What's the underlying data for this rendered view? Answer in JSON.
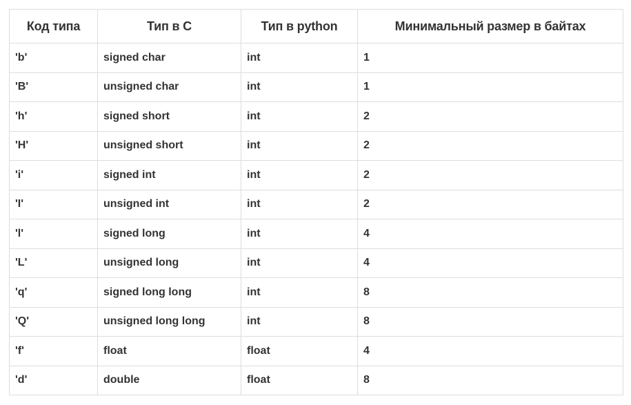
{
  "table": {
    "headers": [
      "Код типа",
      "Тип в С",
      "Тип в python",
      "Минимальный размер в байтах"
    ],
    "rows": [
      [
        "'b'",
        "signed char",
        "int",
        "1"
      ],
      [
        "'B'",
        "unsigned char",
        "int",
        "1"
      ],
      [
        "'h'",
        "signed short",
        "int",
        "2"
      ],
      [
        "'H'",
        "unsigned short",
        "int",
        "2"
      ],
      [
        "'i'",
        "signed int",
        "int",
        "2"
      ],
      [
        "'I'",
        "unsigned int",
        "int",
        "2"
      ],
      [
        "'l'",
        "signed long",
        "int",
        "4"
      ],
      [
        "'L'",
        "unsigned long",
        "int",
        "4"
      ],
      [
        "'q'",
        "signed long long",
        "int",
        "8"
      ],
      [
        "'Q'",
        "unsigned long long",
        "int",
        "8"
      ],
      [
        "'f'",
        "float",
        "float",
        "4"
      ],
      [
        "'d'",
        "double",
        "float",
        "8"
      ]
    ]
  },
  "colors": {
    "border": "#dddddd",
    "text": "#333333",
    "background": "#ffffff"
  }
}
